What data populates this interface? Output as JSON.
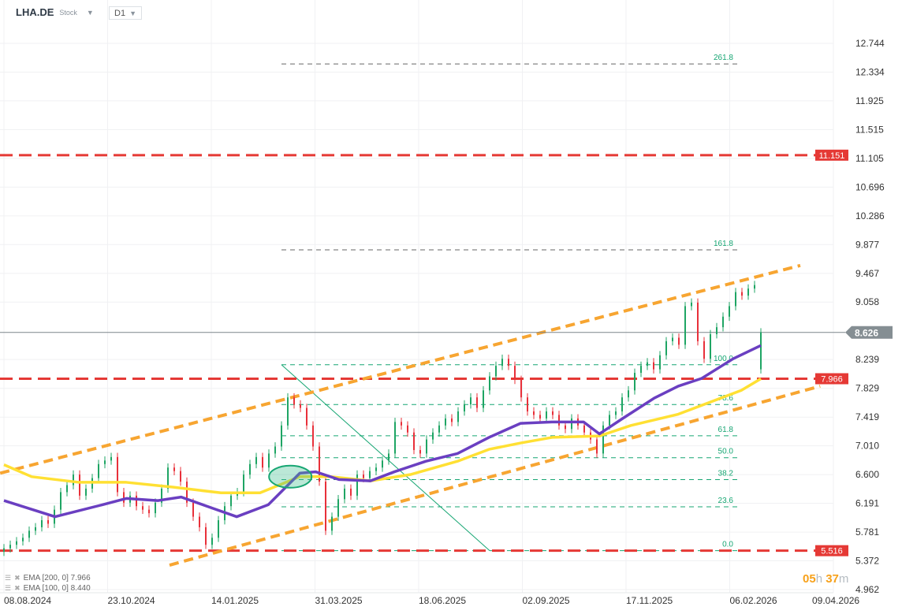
{
  "header": {
    "symbol": "LHA.DE",
    "type": "Stock",
    "timeframe": "D1"
  },
  "legend": [
    {
      "label": "EMA [200,  0] 7.966"
    },
    {
      "label": "EMA [100,  0] 8.440"
    }
  ],
  "timer": {
    "hours": "05",
    "h": "h",
    "minutes": "37",
    "m": "m"
  },
  "colors": {
    "up": "#1fa564",
    "down": "#e8303a",
    "ema200": "#ffe033",
    "ema100": "#6a3fc1",
    "trend": "#f7a531",
    "level": "#e53935",
    "fib": "#17a673",
    "price_label": "#858e93"
  },
  "chart_data": {
    "type": "candlestick",
    "yticks": [
      "12.744",
      "12.334",
      "11.925",
      "11.515",
      "11.105",
      "10.696",
      "10.286",
      "9.877",
      "9.467",
      "9.058",
      "8.239",
      "7.829",
      "7.419",
      "7.010",
      "6.600",
      "6.191",
      "5.781",
      "5.372",
      "4.962"
    ],
    "ylim": [
      4.962,
      12.744
    ],
    "xticks": [
      "08.08.2024",
      "23.10.2024",
      "14.01.2025",
      "31.03.2025",
      "18.06.2025",
      "02.09.2025",
      "17.11.2025",
      "06.02.2026",
      "09.04.2026"
    ],
    "closes": [
      5.55,
      5.6,
      5.65,
      5.7,
      5.8,
      5.85,
      5.95,
      5.9,
      6.1,
      6.35,
      6.45,
      6.6,
      6.3,
      6.4,
      6.55,
      6.75,
      6.8,
      6.85,
      6.35,
      6.2,
      6.3,
      6.15,
      6.1,
      6.05,
      6.2,
      6.4,
      6.7,
      6.65,
      6.5,
      6.2,
      6.0,
      5.85,
      5.6,
      5.7,
      5.95,
      6.15,
      6.3,
      6.35,
      6.6,
      6.75,
      6.85,
      6.7,
      6.9,
      7.0,
      7.3,
      7.7,
      7.6,
      7.55,
      7.3,
      7.0,
      6.5,
      5.8,
      6.0,
      6.25,
      6.4,
      6.3,
      6.6,
      6.55,
      6.65,
      6.7,
      6.8,
      6.9,
      7.35,
      7.3,
      7.2,
      6.95,
      6.9,
      7.1,
      7.2,
      7.3,
      7.4,
      7.35,
      7.5,
      7.6,
      7.7,
      7.55,
      7.8,
      8.0,
      8.15,
      8.25,
      8.15,
      7.95,
      7.7,
      7.5,
      7.45,
      7.4,
      7.5,
      7.45,
      7.3,
      7.25,
      7.4,
      7.3,
      7.2,
      7.1,
      6.9,
      7.3,
      7.45,
      7.5,
      7.7,
      7.8,
      8.05,
      8.15,
      8.2,
      8.1,
      8.3,
      8.5,
      8.55,
      8.45,
      9.0,
      9.05,
      8.5,
      8.25,
      8.6,
      8.7,
      8.85,
      9.0,
      9.2,
      9.15,
      9.25,
      9.3,
      8.626
    ],
    "first_open": 5.5,
    "last_open": 8.1,
    "last_price": "8.626",
    "ema200": {
      "label": "EMA 200",
      "points": [
        [
          0,
          6.74
        ],
        [
          4.4,
          6.57
        ],
        [
          11.9,
          6.49
        ],
        [
          19.4,
          6.49
        ],
        [
          26.9,
          6.42
        ],
        [
          34.4,
          6.34
        ],
        [
          40.6,
          6.34
        ],
        [
          46.9,
          6.57
        ],
        [
          51.9,
          6.57
        ],
        [
          58.1,
          6.51
        ],
        [
          64.4,
          6.6
        ],
        [
          71.9,
          6.79
        ],
        [
          76.9,
          6.96
        ],
        [
          81.9,
          7.05
        ],
        [
          86.9,
          7.13
        ],
        [
          94.4,
          7.15
        ],
        [
          99.4,
          7.3
        ],
        [
          106.9,
          7.46
        ],
        [
          111.9,
          7.63
        ],
        [
          116.9,
          7.8
        ],
        [
          120,
          7.966
        ]
      ]
    },
    "ema100": {
      "label": "EMA 100",
      "points": [
        [
          0,
          6.23
        ],
        [
          8.1,
          6.0
        ],
        [
          15.6,
          6.17
        ],
        [
          19.4,
          6.26
        ],
        [
          24.4,
          6.23
        ],
        [
          28.1,
          6.28
        ],
        [
          33.1,
          6.12
        ],
        [
          36.9,
          6.0
        ],
        [
          41.9,
          6.17
        ],
        [
          46.9,
          6.62
        ],
        [
          49.4,
          6.64
        ],
        [
          53.1,
          6.53
        ],
        [
          58.1,
          6.51
        ],
        [
          61.9,
          6.64
        ],
        [
          66.9,
          6.79
        ],
        [
          71.9,
          6.9
        ],
        [
          76.9,
          7.13
        ],
        [
          81.9,
          7.33
        ],
        [
          86.9,
          7.35
        ],
        [
          91.9,
          7.35
        ],
        [
          94.4,
          7.18
        ],
        [
          98.1,
          7.4
        ],
        [
          103.1,
          7.69
        ],
        [
          106.9,
          7.86
        ],
        [
          110.6,
          7.97
        ],
        [
          115.6,
          8.25
        ],
        [
          120,
          8.44
        ]
      ]
    },
    "levels": [
      {
        "value": 11.151,
        "label": "11.151"
      },
      {
        "value": 7.966,
        "label": "7.966"
      },
      {
        "value": 5.516,
        "label": "5.516"
      }
    ],
    "trendlines": [
      {
        "from": [
          -0.6,
          6.62
        ],
        "to": [
          126.25,
          9.58
        ]
      },
      {
        "from": [
          26.25,
          5.31
        ],
        "to": [
          129.4,
          7.86
        ]
      }
    ],
    "fibonacci": {
      "from": [
        44,
        8.165
      ],
      "to": [
        77,
        5.516
      ],
      "end_index": 116.25,
      "levels": [
        {
          "ratio": 0,
          "label": "0.0"
        },
        {
          "ratio": 0.236,
          "label": "23.6"
        },
        {
          "ratio": 0.382,
          "label": "38.2"
        },
        {
          "ratio": 0.5,
          "label": "50.0"
        },
        {
          "ratio": 0.618,
          "label": "61.8"
        },
        {
          "ratio": 0.786,
          "label": "78.6"
        },
        {
          "ratio": 1,
          "label": "100.0"
        },
        {
          "ratio": 1.618,
          "label": "161.8"
        },
        {
          "ratio": 2.618,
          "label": "261.8"
        }
      ]
    },
    "highlight": {
      "type": "ellipse",
      "center": [
        45.4,
        6.57
      ]
    }
  }
}
